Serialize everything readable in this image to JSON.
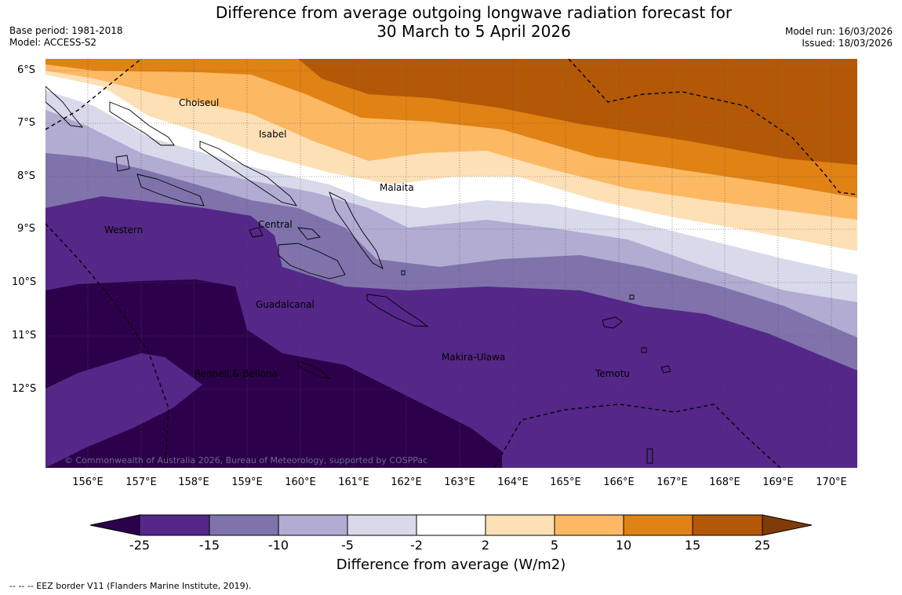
{
  "title": {
    "line1": "Difference from average outgoing longwave radiation forecast for",
    "line2": "30 March to 5 April 2026"
  },
  "meta": {
    "base_period": "Base period: 1981-2018",
    "model": "Model: ACCESS-S2",
    "model_run": "Model run: 16/03/2026",
    "issued": "Issued: 18/03/2026"
  },
  "map": {
    "lat_labels": [
      "6°S",
      "7°S",
      "8°S",
      "9°S",
      "10°S",
      "11°S",
      "12°S"
    ],
    "lon_labels": [
      "156°E",
      "157°E",
      "158°E",
      "159°E",
      "160°E",
      "161°E",
      "162°E",
      "163°E",
      "164°E",
      "165°E",
      "166°E",
      "167°E",
      "168°E",
      "169°E",
      "170°E"
    ],
    "regions": {
      "choiseul": "Choiseul",
      "isabel": "Isabel",
      "malaita": "Malaita",
      "central": "Central",
      "western": "Western",
      "guadalcanal": "Guadalcanal",
      "makira_ulawa": "Makira-Ulawa",
      "rennell_bellona": "Rennell & Bellona",
      "temotu": "Temotu"
    },
    "copyright": "© Commonwealth of Australia 2026, Bureau of Meteorology, supported by COSPPac"
  },
  "colorbar": {
    "levels": [
      "-25",
      "-15",
      "-10",
      "-5",
      "-2",
      "2",
      "5",
      "10",
      "15",
      "25"
    ],
    "colors": [
      "#2d004b",
      "#542788",
      "#8073ac",
      "#b2abd2",
      "#d8daeb",
      "#ffffff",
      "#fee0b6",
      "#fdb863",
      "#e08214",
      "#b35806",
      "#7f3b08"
    ],
    "label": "Difference from average (W/m2)"
  },
  "footnote": "--  --  -- EEZ border V11 (Flanders Marine Institute, 2019)."
}
